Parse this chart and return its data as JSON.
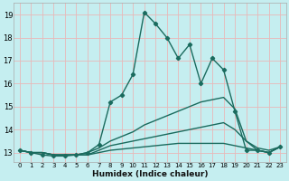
{
  "xlabel": "Humidex (Indice chaleur)",
  "bg_color": "#c5eef0",
  "grid_color": "#e8b8b8",
  "line_color": "#1a6b5e",
  "xlim": [
    -0.5,
    23.5
  ],
  "ylim": [
    12.6,
    19.5
  ],
  "yticks": [
    13,
    14,
    15,
    16,
    17,
    18,
    19
  ],
  "xticks": [
    0,
    1,
    2,
    3,
    4,
    5,
    6,
    7,
    8,
    9,
    10,
    11,
    12,
    13,
    14,
    15,
    16,
    17,
    18,
    19,
    20,
    21,
    22,
    23
  ],
  "series": [
    {
      "x": [
        0,
        1,
        2,
        3,
        4,
        5,
        6,
        7,
        8,
        9,
        10,
        11,
        12,
        13,
        14,
        15,
        16,
        17,
        18,
        19,
        20,
        21,
        22,
        23
      ],
      "y": [
        13.1,
        13.0,
        12.9,
        12.85,
        12.85,
        12.9,
        13.0,
        13.35,
        15.2,
        15.5,
        16.4,
        19.1,
        18.6,
        18.0,
        17.1,
        17.7,
        16.0,
        17.1,
        16.6,
        14.8,
        13.1,
        13.1,
        13.0,
        13.25
      ],
      "marker": true,
      "lw": 1.0
    },
    {
      "x": [
        0,
        1,
        2,
        3,
        4,
        5,
        6,
        7,
        8,
        9,
        10,
        11,
        12,
        13,
        14,
        15,
        16,
        17,
        18,
        19,
        20,
        21,
        22,
        23
      ],
      "y": [
        13.1,
        13.0,
        13.0,
        12.9,
        12.9,
        12.9,
        13.0,
        13.2,
        13.5,
        13.7,
        13.9,
        14.2,
        14.4,
        14.6,
        14.8,
        15.0,
        15.2,
        15.3,
        15.4,
        14.9,
        13.5,
        13.2,
        13.1,
        13.25
      ],
      "marker": false,
      "lw": 1.0
    },
    {
      "x": [
        0,
        1,
        2,
        3,
        4,
        5,
        6,
        7,
        8,
        9,
        10,
        11,
        12,
        13,
        14,
        15,
        16,
        17,
        18,
        19,
        20,
        21,
        22,
        23
      ],
      "y": [
        13.1,
        13.0,
        13.0,
        12.9,
        12.9,
        12.9,
        12.9,
        13.1,
        13.3,
        13.4,
        13.5,
        13.6,
        13.7,
        13.8,
        13.9,
        14.0,
        14.1,
        14.2,
        14.3,
        14.0,
        13.5,
        13.1,
        13.0,
        13.25
      ],
      "marker": false,
      "lw": 1.0
    },
    {
      "x": [
        0,
        1,
        2,
        3,
        4,
        5,
        6,
        7,
        8,
        9,
        10,
        11,
        12,
        13,
        14,
        15,
        16,
        17,
        18,
        19,
        20,
        21,
        22,
        23
      ],
      "y": [
        13.1,
        13.0,
        13.0,
        12.9,
        12.9,
        12.9,
        12.9,
        13.0,
        13.1,
        13.15,
        13.2,
        13.25,
        13.3,
        13.35,
        13.4,
        13.4,
        13.4,
        13.4,
        13.4,
        13.3,
        13.2,
        13.1,
        13.0,
        13.25
      ],
      "marker": false,
      "lw": 1.0
    }
  ]
}
